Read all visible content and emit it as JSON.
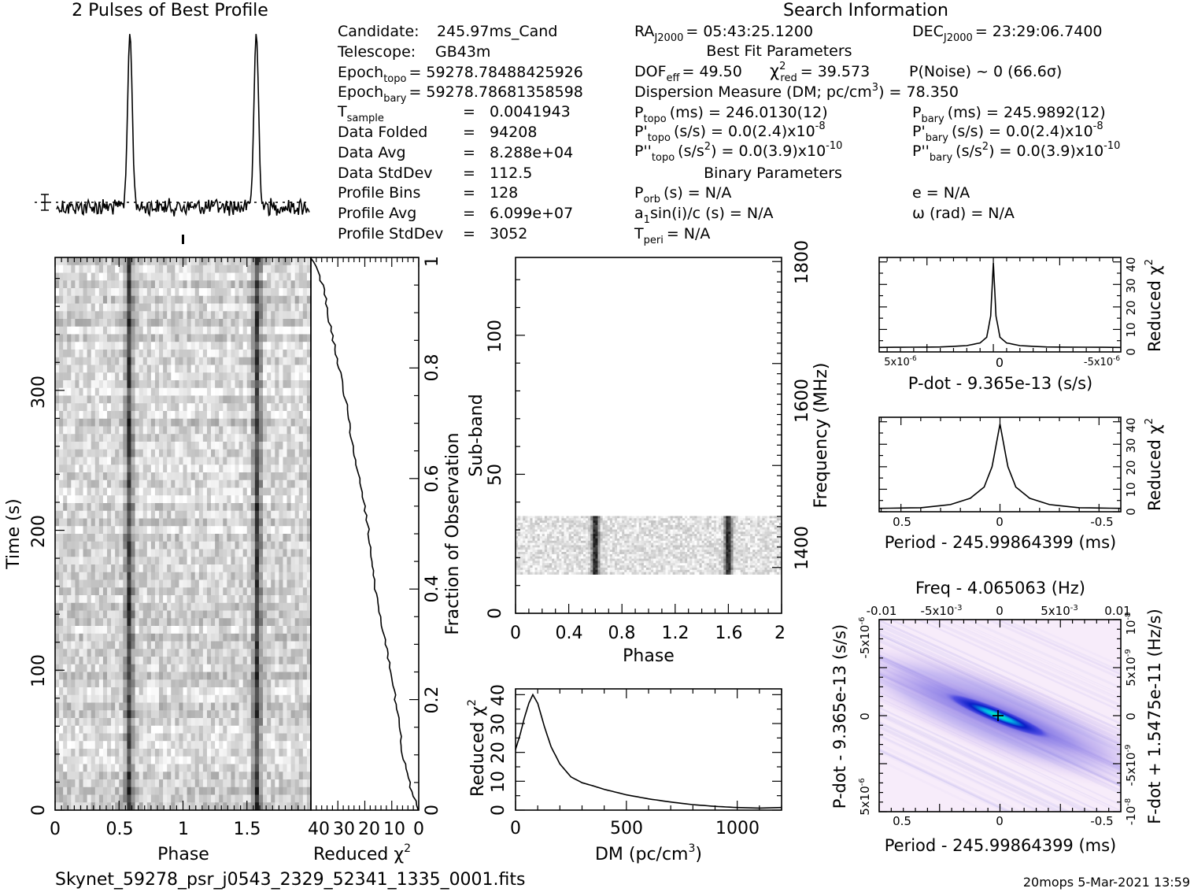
{
  "header": {
    "profile_title": "2 Pulses of Best Profile",
    "search_title": "Search Information"
  },
  "info": {
    "candidate": [
      "Candidate:",
      "245.97ms_Cand"
    ],
    "telescope": [
      "Telescope:",
      "GB43m"
    ],
    "epoch_topo": [
      "Epoch",
      "topo",
      "= 59278.78488425926"
    ],
    "epoch_bary": [
      "Epoch",
      "bary",
      "= 59278.78681358598"
    ],
    "tsample": [
      "T",
      "sample",
      "=",
      "0.0041943"
    ],
    "data_folded": [
      "Data Folded",
      "=",
      "94208"
    ],
    "data_avg": [
      "Data Avg",
      "=",
      "8.288e+04"
    ],
    "data_stddev": [
      "Data StdDev",
      "=",
      "112.5"
    ],
    "profile_bins": [
      "Profile Bins",
      "=",
      "128"
    ],
    "profile_avg": [
      "Profile Avg",
      "=",
      "6.099e+07"
    ],
    "profile_stddev": [
      "Profile StdDev",
      "=",
      "3052"
    ],
    "ra": [
      "RA",
      "J2000",
      "= 05:43:25.1200"
    ],
    "dec": [
      "DEC",
      "J2000",
      "= 23:29:06.7400"
    ],
    "best_fit_title": "Best Fit Parameters",
    "dof": [
      "DOF",
      "eff",
      "= 49.50"
    ],
    "chi2": [
      "χ",
      "2",
      "red",
      "= 39.573"
    ],
    "pnoise": "P(Noise) ~ 0   (66.6σ)",
    "dm_line": [
      "Dispersion Measure (DM; pc/cm",
      "3",
      ") = 78.350"
    ],
    "ptopo": [
      "P",
      "topo",
      "(ms) =  246.0130(12)"
    ],
    "pbary": [
      "P",
      "bary",
      "(ms) =  245.9892(12)"
    ],
    "pdot_topo": [
      "P'",
      "topo",
      "(s/s) = 0.0(2.4)x10",
      "-8"
    ],
    "pdot_bary": [
      "P'",
      "bary",
      "(s/s) = 0.0(2.4)x10",
      "-8"
    ],
    "pddot_topo": [
      "P''",
      "topo",
      "(s/s",
      "2",
      ") = 0.0(3.9)x10",
      "-10"
    ],
    "pddot_bary": [
      "P''",
      "bary",
      "(s/s",
      "2",
      ") = 0.0(3.9)x10",
      "-10"
    ],
    "binary_title": "Binary Parameters",
    "porb": [
      "P",
      "orb",
      "(s) = N/A"
    ],
    "e": "e = N/A",
    "a1sini": [
      "a",
      "1",
      "sin(i)/c (s) = N/A"
    ],
    "omega": "ω (rad) = N/A",
    "tperi": [
      "T",
      "peri",
      "= N/A"
    ]
  },
  "footer": {
    "filename": "Skynet_59278_psr_j0543_2329_52341_1335_0001.fits",
    "stamp": "20mops  5-Mar-2021 13:59"
  },
  "chart_data": [
    {
      "name": "profile",
      "type": "line",
      "title": "2 Pulses of Best Profile",
      "x_range": [
        0,
        2
      ],
      "peaks_at_phase": [
        0.58,
        1.58
      ]
    },
    {
      "name": "time-phase",
      "type": "heatmap",
      "xlabel": "Phase",
      "ylabel": "Time (s)",
      "xlim": [
        0,
        2
      ],
      "ylim": [
        0,
        395
      ],
      "xticks": [
        "0",
        "0.5",
        "1",
        "1.5"
      ],
      "yticks": [
        "0",
        "100",
        "200",
        "300"
      ],
      "pulse_phases": [
        0.58,
        1.58
      ]
    },
    {
      "name": "reduced-chi2-vs-time",
      "type": "line",
      "xlabel": [
        "Reduced ",
        "χ",
        "2"
      ],
      "ylabel": "Fraction of Observation",
      "xlim": [
        40,
        0
      ],
      "ylim": [
        0,
        1
      ],
      "xticks": [
        "40",
        "30",
        "20",
        "10",
        "0"
      ],
      "yticks": [
        "0",
        "0.2",
        "0.4",
        "0.6",
        "0.8",
        "1"
      ],
      "x": [
        0,
        3,
        6,
        8,
        11,
        14,
        17,
        19,
        22,
        25,
        27,
        30,
        33,
        35,
        38,
        40
      ],
      "y": [
        0.0,
        0.04,
        0.1,
        0.18,
        0.27,
        0.34,
        0.43,
        0.52,
        0.6,
        0.67,
        0.74,
        0.81,
        0.88,
        0.94,
        0.98,
        1.0
      ]
    },
    {
      "name": "subband-phase",
      "type": "heatmap",
      "xlabel": "Phase",
      "ylabel": "Sub-band",
      "ylabel_right": "Frequency (MHz)",
      "xlim": [
        0,
        2
      ],
      "ylim": [
        0,
        128
      ],
      "xticks": [
        "0",
        "0.4",
        "0.8",
        "1.2",
        "1.6",
        "2"
      ],
      "yticks": [
        "0",
        "50",
        "100"
      ],
      "freq_ticks": [
        "1400",
        "1600",
        "1800"
      ],
      "data_subbands": [
        14,
        35
      ],
      "pulse_phases": [
        0.6,
        1.6
      ]
    },
    {
      "name": "dm-curve",
      "type": "line",
      "xlabel": [
        "DM (pc/cm",
        "3",
        ")"
      ],
      "ylabel": [
        "Reduced ",
        "χ",
        "2"
      ],
      "xlim": [
        0,
        1200
      ],
      "ylim": [
        0,
        42
      ],
      "xticks": [
        "0",
        "500",
        "1000"
      ],
      "yticks": [
        "0",
        "10",
        "20",
        "30",
        "40"
      ],
      "x": [
        0,
        20,
        40,
        60,
        78,
        100,
        130,
        160,
        200,
        250,
        300,
        350,
        400,
        500,
        600,
        700,
        800,
        900,
        1000,
        1100,
        1200
      ],
      "y": [
        21,
        26,
        32,
        37,
        40,
        37,
        29,
        22,
        16,
        11.5,
        9.5,
        8.4,
        7.2,
        5.3,
        3.9,
        2.8,
        1.9,
        1.3,
        0.9,
        0.7,
        0.9
      ]
    },
    {
      "name": "pdot-curve",
      "type": "line",
      "xlabel": "P-dot - 9.365e-13 (s/s)",
      "ylabel": [
        "Reduced ",
        "χ",
        "2"
      ],
      "xlim": [
        8.6e-06,
        -9.6e-06
      ],
      "ylim": [
        0,
        42
      ],
      "xtick_labels": [
        "5x10",
        "0",
        "-5x10"
      ],
      "yticks": [
        "0",
        "10",
        "20",
        "30",
        "40"
      ],
      "x": [
        8.6e-06,
        4e-06,
        2e-06,
        1e-06,
        5e-07,
        2e-07,
        0,
        -2e-07,
        -5e-07,
        -1e-06,
        -2e-06,
        -4e-06,
        -9.6e-06
      ],
      "y": [
        2,
        2.2,
        2.8,
        4,
        6.5,
        16,
        39.5,
        16,
        6.5,
        4,
        2.8,
        2.2,
        2
      ]
    },
    {
      "name": "period-curve",
      "type": "line",
      "xlabel": "Period - 245.99864399 (ms)",
      "ylabel": [
        "Reduced ",
        "χ",
        "2"
      ],
      "xlim": [
        0.61,
        -0.61
      ],
      "ylim": [
        0,
        42
      ],
      "xticks": [
        "0.5",
        "0",
        "-0.5"
      ],
      "yticks": [
        "0",
        "10",
        "20",
        "30",
        "40"
      ],
      "x": [
        0.61,
        0.4,
        0.25,
        0.15,
        0.08,
        0.04,
        0.0,
        -0.04,
        -0.08,
        -0.15,
        -0.25,
        -0.4,
        -0.61
      ],
      "y": [
        1.5,
        1.8,
        3.2,
        6,
        11,
        20,
        39,
        20,
        11,
        6,
        3.2,
        1.8,
        1.5
      ]
    },
    {
      "name": "period-pdot-plane",
      "type": "heatmap",
      "title": "Freq - 4.065063 (Hz)",
      "xlabel": "Period - 245.99864399 (ms)",
      "ylabel": "P-dot - 9.365e-13 (s/s)",
      "ylabel_right": "F-dot + 1.5475e-11 (Hz/s)",
      "xticks": [
        "0.5",
        "0",
        "-0.5"
      ],
      "top_ticks": [
        "-0.01",
        "-5x10",
        "0",
        "5x10",
        "0.01"
      ],
      "yticks": [
        "5x10",
        "0",
        "-5x10"
      ],
      "right_ticks": [
        "-10",
        "-5x10",
        "0",
        "5x10",
        "10"
      ],
      "colors": [
        "#ffffff",
        "#e6c8f0",
        "#8c82e6",
        "#1e1ed2",
        "#0064dc",
        "#00ffc8"
      ]
    }
  ]
}
